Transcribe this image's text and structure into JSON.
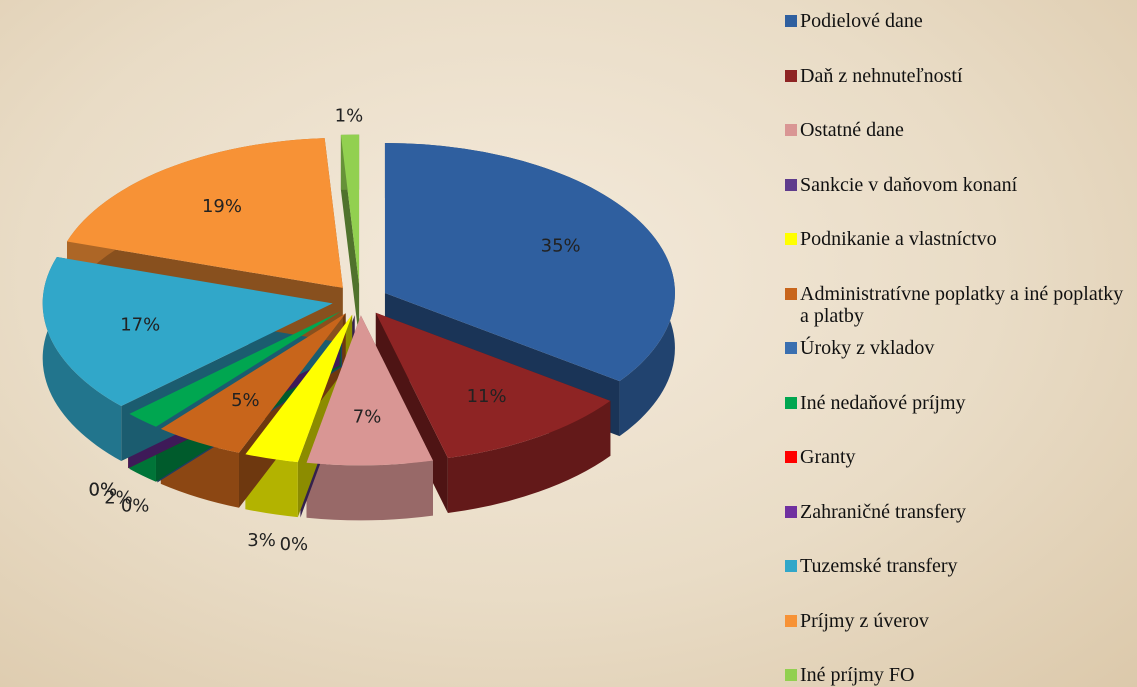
{
  "chart_data": {
    "type": "pie",
    "categories": [
      "Podielové dane",
      "Daň z nehnuteľností",
      "Ostatné dane",
      "Sankcie v daňovom konaní",
      "Podnikanie a vlastníctvo",
      "Administratívne poplatky a iné poplatky a platby",
      "Úroky z vkladov",
      "Iné nedaňové príjmy",
      "Granty",
      "Zahraničné transfery",
      "Tuzemské transfery",
      "Príjmy z úverov",
      "Iné príjmy FO"
    ],
    "values": [
      35,
      11,
      7,
      0,
      3,
      5,
      0,
      2,
      0,
      0,
      17,
      19,
      1
    ],
    "value_labels": [
      "35%",
      "11%",
      "7%",
      "0%",
      "3%",
      "5%",
      "0%",
      "2%",
      "0%",
      "0%",
      "17%",
      "19%",
      "1%"
    ],
    "colors": [
      "#2f5f9f",
      "#8e2424",
      "#d99694",
      "#5f3c8c",
      "#ffff00",
      "#c8651b",
      "#3a6fb0",
      "#00a650",
      "#ff0000",
      "#7030a0",
      "#31a7c9",
      "#f79236",
      "#92d050"
    ],
    "legend": "right"
  }
}
